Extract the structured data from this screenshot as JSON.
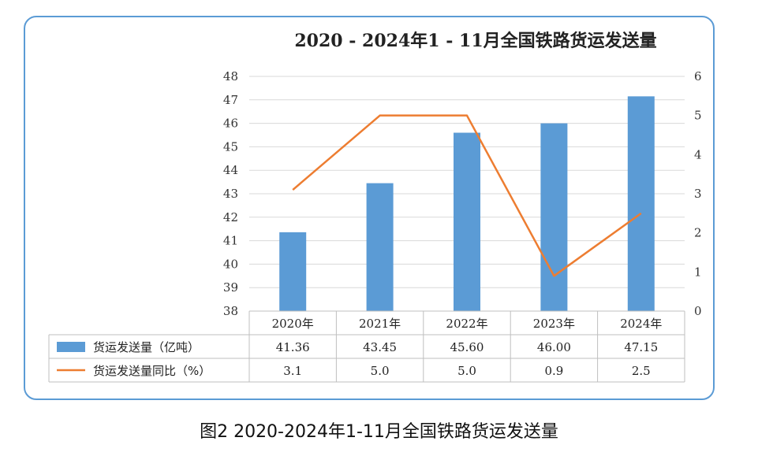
{
  "chart_data": {
    "type": "bar",
    "title": "2020 - 2024年1 - 11月全国铁路货运发送量",
    "categories": [
      "2020年",
      "2021年",
      "2022年",
      "2023年",
      "2024年"
    ],
    "series": [
      {
        "name": "货运发送量（亿吨）",
        "type": "bar",
        "axis": "left",
        "color": "#5b9bd5",
        "values": [
          41.36,
          43.45,
          45.6,
          46.0,
          47.15
        ],
        "labels": [
          "41.36",
          "43.45",
          "45.60",
          "46.00",
          "47.15"
        ]
      },
      {
        "name": "货运发送量同比（%）",
        "type": "line",
        "axis": "right",
        "color": "#ed7d31",
        "values": [
          3.1,
          5.0,
          5.0,
          0.9,
          2.5
        ],
        "labels": [
          "3.1",
          "5.0",
          "5.0",
          "0.9",
          "2.5"
        ]
      }
    ],
    "y_left": {
      "min": 38,
      "max": 48,
      "ticks": [
        "38",
        "39",
        "40",
        "41",
        "42",
        "43",
        "44",
        "45",
        "46",
        "47",
        "48"
      ]
    },
    "y_right": {
      "min": 0,
      "max": 6,
      "ticks": [
        "0",
        "1",
        "2",
        "3",
        "4",
        "5",
        "6"
      ]
    },
    "grid": true,
    "data_table": true
  },
  "caption": "图2 2020-2024年1-11月全国铁路货运发送量"
}
